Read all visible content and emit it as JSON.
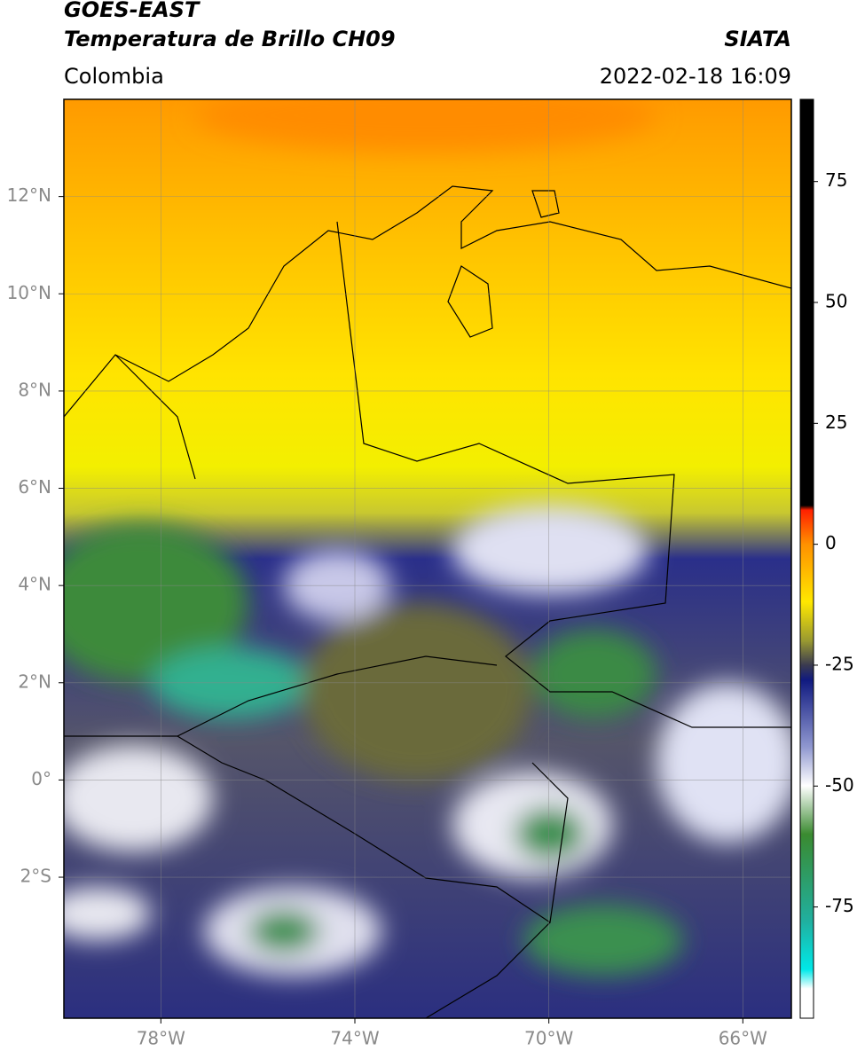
{
  "header": {
    "title": "GOES-EAST",
    "subtitle": "Temperatura de Brillo CH09",
    "source": "SIATA",
    "region": "Colombia",
    "datetime": "2022-02-18 16:09"
  },
  "map": {
    "xlim": [
      -80,
      -65
    ],
    "ylim": [
      -4.9,
      14
    ],
    "xticks": [
      {
        "value": -78,
        "label": "78°W"
      },
      {
        "value": -74,
        "label": "74°W"
      },
      {
        "value": -70,
        "label": "70°W"
      },
      {
        "value": -66,
        "label": "66°W"
      }
    ],
    "yticks": [
      {
        "value": 12,
        "label": "12°N"
      },
      {
        "value": 10,
        "label": "10°N"
      },
      {
        "value": 8,
        "label": "8°N"
      },
      {
        "value": 6,
        "label": "6°N"
      },
      {
        "value": 4,
        "label": "4°N"
      },
      {
        "value": 2,
        "label": "2°N"
      },
      {
        "value": 0,
        "label": "0°"
      },
      {
        "value": -2,
        "label": "2°S"
      }
    ],
    "grid": true
  },
  "colorbar": {
    "lim": [
      -98,
      92
    ],
    "ticks": [
      75,
      50,
      25,
      0,
      -25,
      -50,
      -75
    ]
  }
}
